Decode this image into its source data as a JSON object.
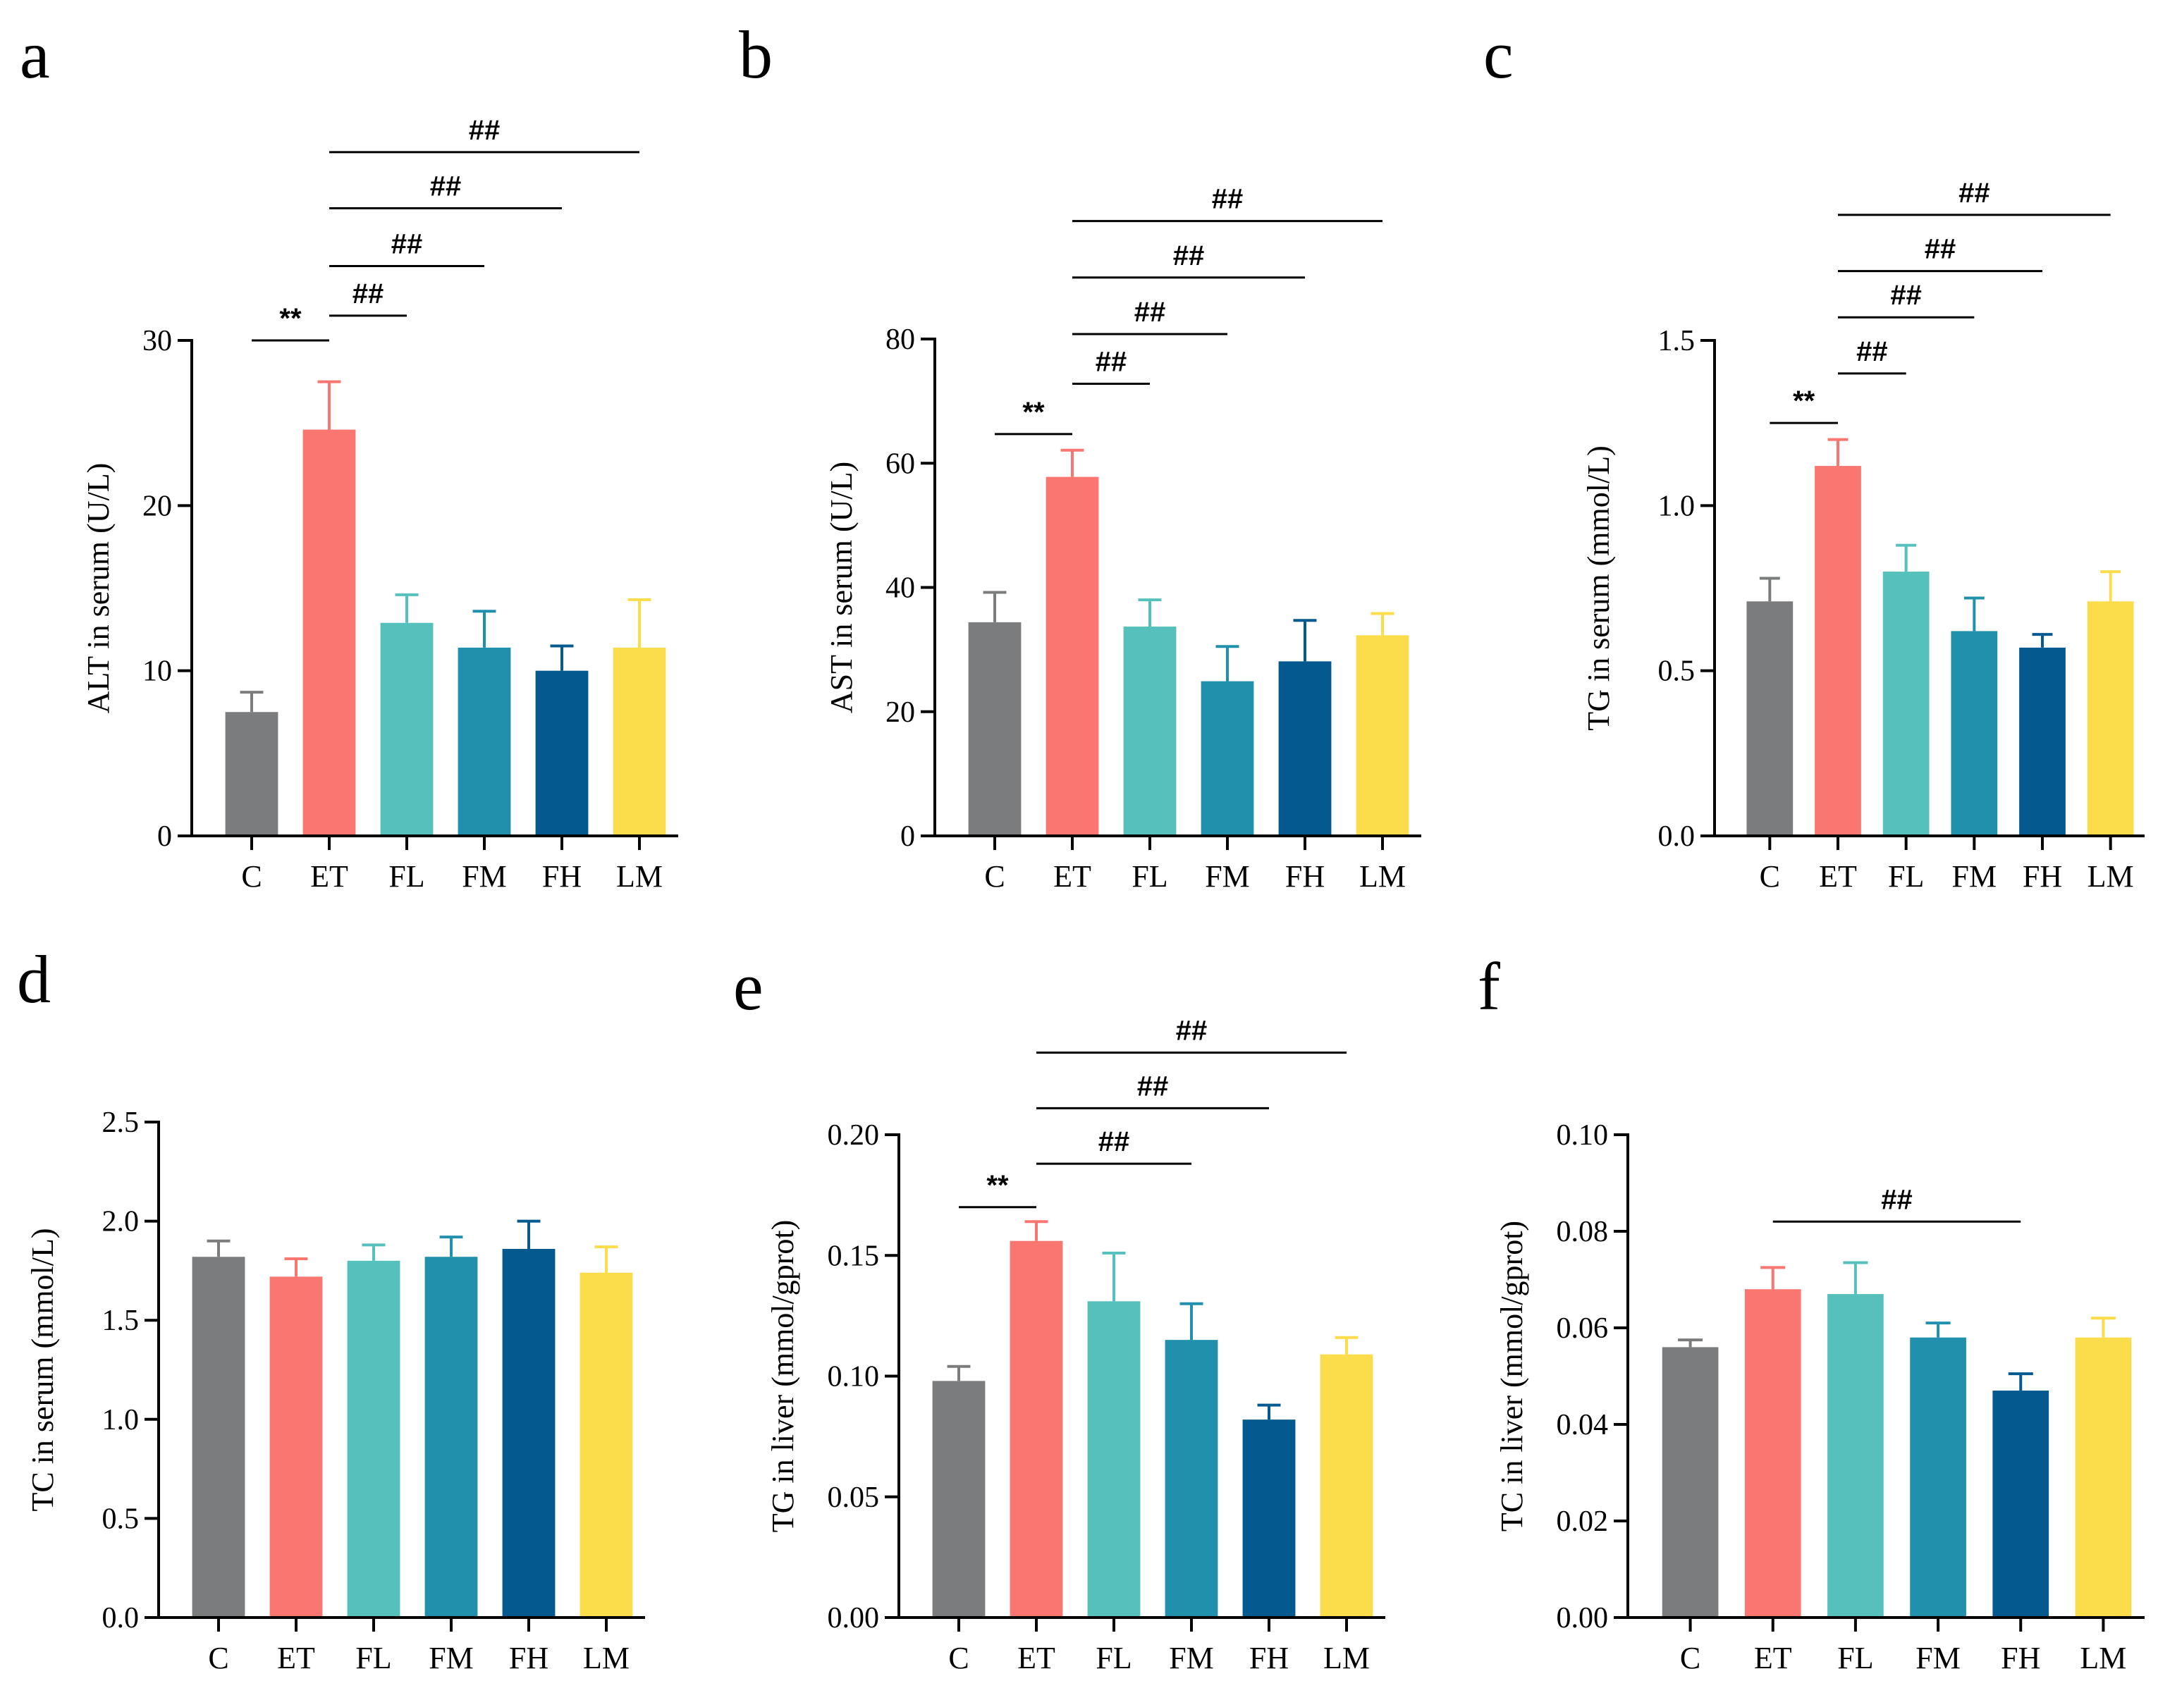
{
  "colors": {
    "C": "#7a7c7e",
    "ET": "#fa7670",
    "FL": "#56c0bd",
    "FM": "#2090ad",
    "FH": "#04598f",
    "LM": "#fbdc4a"
  },
  "chart_data": [
    {
      "panel": "a",
      "type": "bar",
      "ylabel": "ALT in serum (U/L)",
      "categories": [
        "C",
        "ET",
        "FL",
        "FM",
        "FH",
        "LM"
      ],
      "values": [
        7.5,
        24.6,
        12.9,
        11.4,
        10.0,
        11.4
      ],
      "errors": [
        1.2,
        2.9,
        1.7,
        2.2,
        1.5,
        2.9
      ],
      "ylim": [
        0,
        30
      ],
      "yticks": [
        0,
        10,
        20,
        30
      ],
      "ytick_labels": [
        "0",
        "10",
        "20",
        "30"
      ],
      "significance": [
        {
          "from": 0,
          "to": 1,
          "label": "**",
          "level": 30.0
        },
        {
          "from": 1,
          "to": 2,
          "label": "##",
          "level": 31.5
        },
        {
          "from": 1,
          "to": 3,
          "label": "##",
          "level": 34.5
        },
        {
          "from": 1,
          "to": 4,
          "label": "##",
          "level": 38.0
        },
        {
          "from": 1,
          "to": 5,
          "label": "##",
          "level": 41.4
        }
      ]
    },
    {
      "panel": "b",
      "type": "bar",
      "ylabel": "AST in serum (U/L)",
      "categories": [
        "C",
        "ET",
        "FL",
        "FM",
        "FH",
        "LM"
      ],
      "values": [
        34.4,
        57.8,
        33.7,
        24.9,
        28.1,
        32.3
      ],
      "errors": [
        4.8,
        4.3,
        4.3,
        5.6,
        6.6,
        3.5
      ],
      "ylim": [
        0,
        80
      ],
      "yticks": [
        0,
        20,
        40,
        60,
        80
      ],
      "ytick_labels": [
        "0",
        "20",
        "40",
        "60",
        "80"
      ],
      "significance": [
        {
          "from": 0,
          "to": 1,
          "label": "**",
          "level": 64.7
        },
        {
          "from": 1,
          "to": 2,
          "label": "##",
          "level": 72.8
        },
        {
          "from": 1,
          "to": 3,
          "label": "##",
          "level": 80.8
        },
        {
          "from": 1,
          "to": 4,
          "label": "##",
          "level": 89.9
        },
        {
          "from": 1,
          "to": 5,
          "label": "##",
          "level": 99.0
        }
      ]
    },
    {
      "panel": "c",
      "type": "bar",
      "ylabel": "TG in serum (mmol/L)",
      "categories": [
        "C",
        "ET",
        "FL",
        "FM",
        "FH",
        "LM"
      ],
      "values": [
        0.71,
        1.12,
        0.8,
        0.62,
        0.57,
        0.71
      ],
      "errors": [
        0.07,
        0.08,
        0.08,
        0.1,
        0.04,
        0.09
      ],
      "ylim": [
        0,
        1.5
      ],
      "yticks": [
        0.0,
        0.5,
        1.0,
        1.5
      ],
      "ytick_labels": [
        "0.0",
        "0.5",
        "1.0",
        "1.5"
      ],
      "significance": [
        {
          "from": 0,
          "to": 1,
          "label": "**",
          "level": 1.25
        },
        {
          "from": 1,
          "to": 2,
          "label": "##",
          "level": 1.4
        },
        {
          "from": 1,
          "to": 3,
          "label": "##",
          "level": 1.57
        },
        {
          "from": 1,
          "to": 4,
          "label": "##",
          "level": 1.71
        },
        {
          "from": 1,
          "to": 5,
          "label": "##",
          "level": 1.88
        }
      ]
    },
    {
      "panel": "d",
      "type": "bar",
      "ylabel": "TC in serum (mmol/L)",
      "categories": [
        "C",
        "ET",
        "FL",
        "FM",
        "FH",
        "LM"
      ],
      "values": [
        1.82,
        1.72,
        1.8,
        1.82,
        1.86,
        1.74
      ],
      "errors": [
        0.08,
        0.09,
        0.08,
        0.1,
        0.14,
        0.13
      ],
      "ylim": [
        0,
        2.5
      ],
      "yticks": [
        0.0,
        0.5,
        1.0,
        1.5,
        2.0,
        2.5
      ],
      "ytick_labels": [
        "0.0",
        "0.5",
        "1.0",
        "1.5",
        "2.0",
        "2.5"
      ],
      "significance": []
    },
    {
      "panel": "e",
      "type": "bar",
      "ylabel": "TG in liver (mmol/gprot)",
      "categories": [
        "C",
        "ET",
        "FL",
        "FM",
        "FH",
        "LM"
      ],
      "values": [
        0.098,
        0.156,
        0.131,
        0.115,
        0.082,
        0.109
      ],
      "errors": [
        0.006,
        0.008,
        0.02,
        0.015,
        0.006,
        0.007
      ],
      "ylim": [
        0,
        0.2
      ],
      "yticks": [
        0.0,
        0.05,
        0.1,
        0.15,
        0.2
      ],
      "ytick_labels": [
        "0.00",
        "0.05",
        "0.10",
        "0.15",
        "0.20"
      ],
      "significance": [
        {
          "from": 0,
          "to": 1,
          "label": "**",
          "level": 0.17
        },
        {
          "from": 1,
          "to": 3,
          "label": "##",
          "level": 0.188
        },
        {
          "from": 1,
          "to": 4,
          "label": "##",
          "level": 0.211
        },
        {
          "from": 1,
          "to": 5,
          "label": "##",
          "level": 0.234
        }
      ]
    },
    {
      "panel": "f",
      "type": "bar",
      "ylabel": "TC in liver (mmol/gprot)",
      "categories": [
        "C",
        "ET",
        "FL",
        "FM",
        "FH",
        "LM"
      ],
      "values": [
        0.056,
        0.068,
        0.067,
        0.058,
        0.047,
        0.058
      ],
      "errors": [
        0.0015,
        0.0045,
        0.0065,
        0.003,
        0.0035,
        0.004
      ],
      "ylim": [
        0,
        0.1
      ],
      "yticks": [
        0.0,
        0.02,
        0.04,
        0.06,
        0.08,
        0.1
      ],
      "ytick_labels": [
        "0.00",
        "0.02",
        "0.04",
        "0.06",
        "0.08",
        "0.10"
      ],
      "significance": [
        {
          "from": 1,
          "to": 4,
          "label": "##",
          "level": 0.082
        }
      ]
    }
  ]
}
